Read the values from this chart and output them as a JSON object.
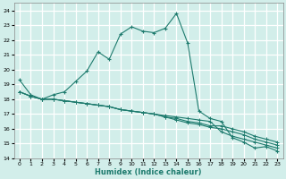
{
  "xlabel": "Humidex (Indice chaleur)",
  "xlim": [
    -0.5,
    23.5
  ],
  "ylim": [
    14,
    24.5
  ],
  "yticks": [
    14,
    15,
    16,
    17,
    18,
    19,
    20,
    21,
    22,
    23,
    24
  ],
  "xticks": [
    0,
    1,
    2,
    3,
    4,
    5,
    6,
    7,
    8,
    9,
    10,
    11,
    12,
    13,
    14,
    15,
    16,
    17,
    18,
    19,
    20,
    21,
    22,
    23
  ],
  "background_color": "#d2eeea",
  "grid_color": "#ffffff",
  "line_color": "#1e7b6e",
  "series": {
    "main": [
      19.3,
      18.3,
      18.0,
      18.3,
      18.5,
      19.2,
      19.9,
      21.2,
      20.7,
      22.4,
      22.9,
      22.6,
      22.5,
      22.8,
      23.8,
      21.8,
      17.2,
      16.7,
      16.5,
      15.4,
      15.1,
      14.7,
      14.8,
      14.5
    ],
    "line1": [
      18.5,
      18.2,
      18.0,
      18.0,
      17.9,
      17.8,
      17.7,
      17.6,
      17.5,
      17.3,
      17.2,
      17.1,
      17.0,
      16.9,
      16.8,
      16.7,
      16.6,
      16.5,
      15.8,
      15.5,
      15.3,
      15.1,
      14.9,
      14.7
    ],
    "line2": [
      18.5,
      18.2,
      18.0,
      18.0,
      17.9,
      17.8,
      17.7,
      17.6,
      17.5,
      17.3,
      17.2,
      17.1,
      17.0,
      16.8,
      16.6,
      16.4,
      16.3,
      16.1,
      16.0,
      15.8,
      15.6,
      15.3,
      15.1,
      14.9
    ],
    "line3": [
      18.5,
      18.2,
      18.0,
      18.0,
      17.9,
      17.8,
      17.7,
      17.6,
      17.5,
      17.3,
      17.2,
      17.1,
      17.0,
      16.8,
      16.7,
      16.5,
      16.4,
      16.2,
      16.2,
      16.0,
      15.8,
      15.5,
      15.3,
      15.1
    ]
  }
}
